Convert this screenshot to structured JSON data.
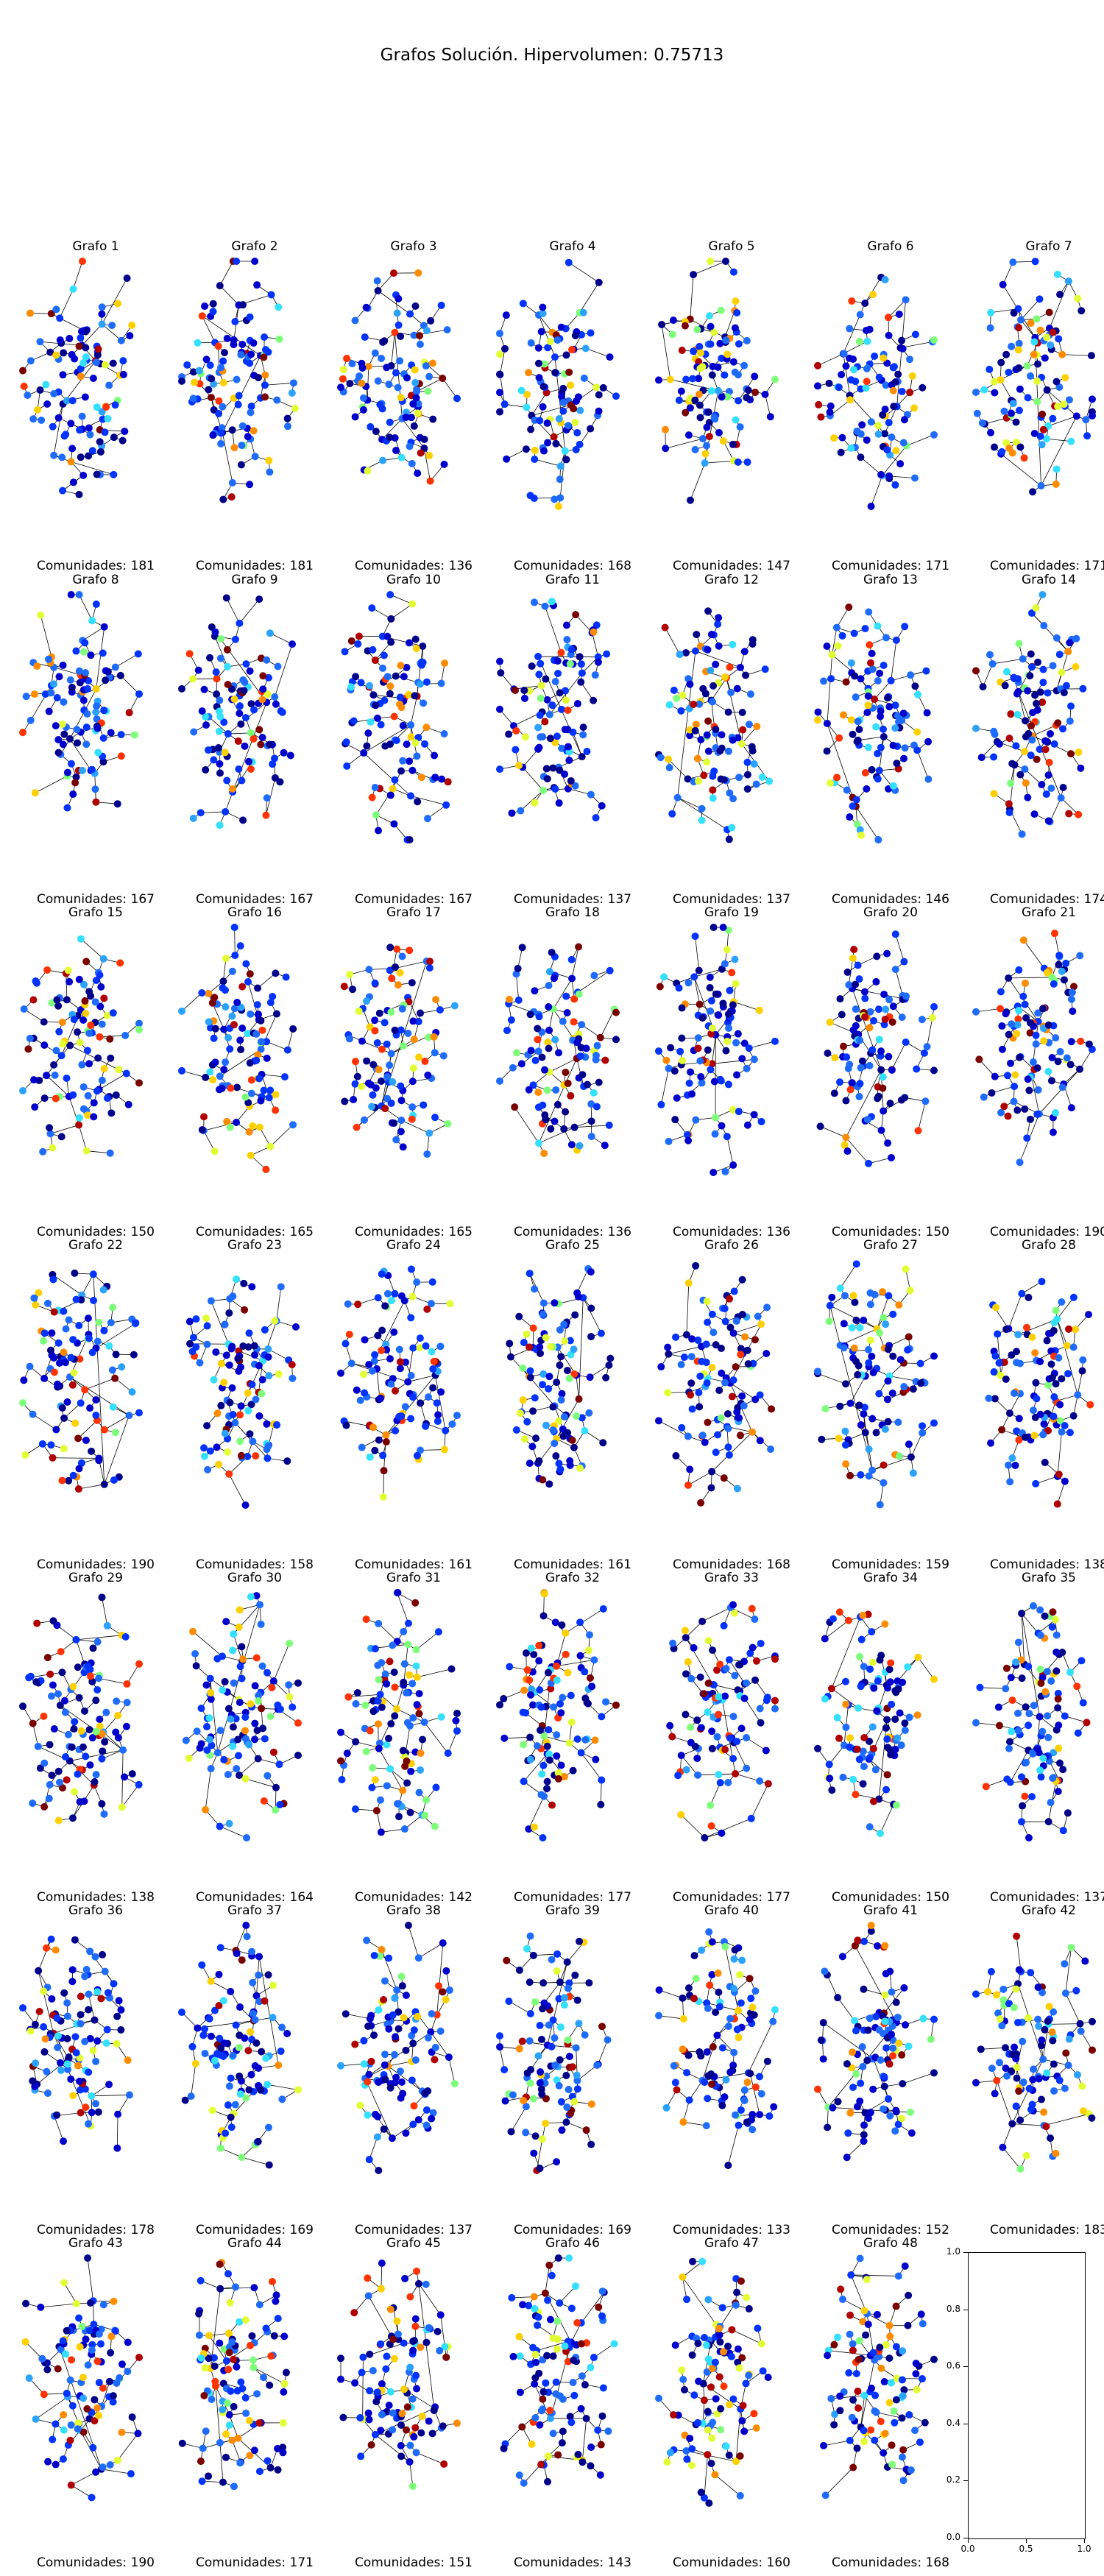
{
  "figure": {
    "title": "Grafos Solución. Hipervolumen: 0.75713",
    "graphs": [
      {
        "title": "Grafo 1",
        "communities": "Comunidades: 181"
      },
      {
        "title": "Grafo 2",
        "communities": "Comunidades: 181"
      },
      {
        "title": "Grafo 3",
        "communities": "Comunidades: 136"
      },
      {
        "title": "Grafo 4",
        "communities": "Comunidades: 168"
      },
      {
        "title": "Grafo 5",
        "communities": "Comunidades: 147"
      },
      {
        "title": "Grafo 6",
        "communities": "Comunidades: 171"
      },
      {
        "title": "Grafo 7",
        "communities": "Comunidades: 171"
      },
      {
        "title": "Grafo 8",
        "communities": "Comunidades: 167"
      },
      {
        "title": "Grafo 9",
        "communities": "Comunidades: 167"
      },
      {
        "title": "Grafo 10",
        "communities": "Comunidades: 167"
      },
      {
        "title": "Grafo 11",
        "communities": "Comunidades: 137"
      },
      {
        "title": "Grafo 12",
        "communities": "Comunidades: 137"
      },
      {
        "title": "Grafo 13",
        "communities": "Comunidades: 146"
      },
      {
        "title": "Grafo 14",
        "communities": "Comunidades: 174"
      },
      {
        "title": "Grafo 15",
        "communities": "Comunidades: 150"
      },
      {
        "title": "Grafo 16",
        "communities": "Comunidades: 165"
      },
      {
        "title": "Grafo 17",
        "communities": "Comunidades: 165"
      },
      {
        "title": "Grafo 18",
        "communities": "Comunidades: 136"
      },
      {
        "title": "Grafo 19",
        "communities": "Comunidades: 136"
      },
      {
        "title": "Grafo 20",
        "communities": "Comunidades: 150"
      },
      {
        "title": "Grafo 21",
        "communities": "Comunidades: 190"
      },
      {
        "title": "Grafo 22",
        "communities": "Comunidades: 190"
      },
      {
        "title": "Grafo 23",
        "communities": "Comunidades: 158"
      },
      {
        "title": "Grafo 24",
        "communities": "Comunidades: 161"
      },
      {
        "title": "Grafo 25",
        "communities": "Comunidades: 161"
      },
      {
        "title": "Grafo 26",
        "communities": "Comunidades: 168"
      },
      {
        "title": "Grafo 27",
        "communities": "Comunidades: 159"
      },
      {
        "title": "Grafo 28",
        "communities": "Comunidades: 138"
      },
      {
        "title": "Grafo 29",
        "communities": "Comunidades: 138"
      },
      {
        "title": "Grafo 30",
        "communities": "Comunidades: 164"
      },
      {
        "title": "Grafo 31",
        "communities": "Comunidades: 142"
      },
      {
        "title": "Grafo 32",
        "communities": "Comunidades: 177"
      },
      {
        "title": "Grafo 33",
        "communities": "Comunidades: 177"
      },
      {
        "title": "Grafo 34",
        "communities": "Comunidades: 150"
      },
      {
        "title": "Grafo 35",
        "communities": "Comunidades: 137"
      },
      {
        "title": "Grafo 36",
        "communities": "Comunidades: 178"
      },
      {
        "title": "Grafo 37",
        "communities": "Comunidades: 169"
      },
      {
        "title": "Grafo 38",
        "communities": "Comunidades: 137"
      },
      {
        "title": "Grafo 39",
        "communities": "Comunidades: 169"
      },
      {
        "title": "Grafo 40",
        "communities": "Comunidades: 133"
      },
      {
        "title": "Grafo 41",
        "communities": "Comunidades: 152"
      },
      {
        "title": "Grafo 42",
        "communities": "Comunidades: 183"
      },
      {
        "title": "Grafo 43",
        "communities": "Comunidades: 190"
      },
      {
        "title": "Grafo 44",
        "communities": "Comunidades: 171"
      },
      {
        "title": "Grafo 45",
        "communities": "Comunidades: 151"
      },
      {
        "title": "Grafo 46",
        "communities": "Comunidades: 143"
      },
      {
        "title": "Grafo 47",
        "communities": "Comunidades: 160"
      },
      {
        "title": "Grafo 48",
        "communities": "Comunidades: 168"
      }
    ],
    "empty_axes": {
      "xticks": [
        "0.0",
        "0.5",
        "1.0"
      ],
      "yticks": [
        "0.0",
        "0.2",
        "0.4",
        "0.6",
        "0.8",
        "1.0"
      ]
    },
    "palette": [
      "#00008b",
      "#0000cd",
      "#0033ff",
      "#1e6cff",
      "#2aa2ff",
      "#33e0ff",
      "#7dff7a",
      "#e2ff33",
      "#ffd000",
      "#ff8c00",
      "#ff3300",
      "#b00000",
      "#7a0000"
    ]
  }
}
